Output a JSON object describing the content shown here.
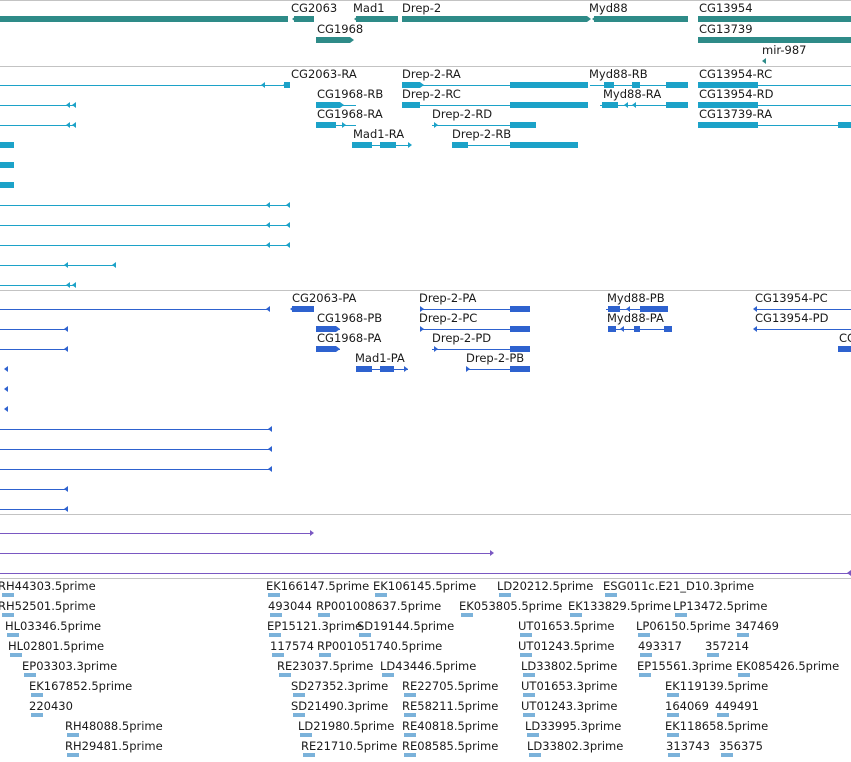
{
  "colors": {
    "gene": "#2e8b88",
    "transcript_flybase": "#1ca2c8",
    "transcript_refseq": "#2e62cf",
    "ncrna": "#7a58c2",
    "est": "#7bb2da",
    "divider": "#c3c3c3"
  },
  "genes": [
    "CG2063",
    "Mad1",
    "Drep-2",
    "Myd88",
    "CG13954",
    "CG1968",
    "CG13739",
    "mir-987"
  ],
  "transcripts_flybase": [
    "CG2063-RA",
    "Drep-2-RA",
    "Myd88-RB",
    "CG13954-RC",
    "CG1968-RB",
    "Drep-2-RC",
    "Myd88-RA",
    "CG13954-RD",
    "CG1968-RA",
    "Drep-2-RD",
    "CG13739-RA",
    "Mad1-RA",
    "Drep-2-RB"
  ],
  "transcripts_refseq": [
    "CG2063-PA",
    "Drep-2-PA",
    "Myd88-PB",
    "CG13954-PC",
    "CG1968-PB",
    "Drep-2-PC",
    "Myd88-PA",
    "CG13954-PD",
    "CG1968-PA",
    "Drep-2-PD",
    "Mad1-PA",
    "Drep-2-PB",
    "CG"
  ],
  "ests": [
    "RH44303.5prime",
    "EK166147.5prime",
    "EK106145.5prime",
    "LD20212.5prime",
    "ESG011c.E21_D10.3prime",
    "RH52501.5prime",
    "493044",
    "RP001008637.5prime",
    "EK053805.5prime",
    "EK133829.5prime",
    "LP13472.5prime",
    "HL03346.5prime",
    "EP15121.3prime",
    "SD19144.5prime",
    "UT01653.5prime",
    "LP06150.5prime",
    "347469",
    "HL02801.5prime",
    "117574",
    "RP001051740.5prime",
    "UT01243.5prime",
    "493317",
    "357214",
    "EP03303.3prime",
    "RE23037.5prime",
    "LD43446.5prime",
    "LD33802.5prime",
    "EP15561.3prime",
    "EK085426.5prime",
    "EK167852.5prime",
    "SD27352.3prime",
    "RE22705.5prime",
    "UT01653.3prime",
    "EK119139.5prime",
    "220430",
    "SD21490.3prime",
    "RE58211.5prime",
    "UT01243.3prime",
    "164069",
    "449491",
    "RH48088.5prime",
    "LD21980.5prime",
    "RE40818.5prime",
    "LD33995.3prime",
    "EK118658.5prime",
    "RH29481.5prime",
    "RE21710.5prime",
    "RE08585.5prime",
    "LD33802.3prime",
    "313743",
    "356375"
  ]
}
